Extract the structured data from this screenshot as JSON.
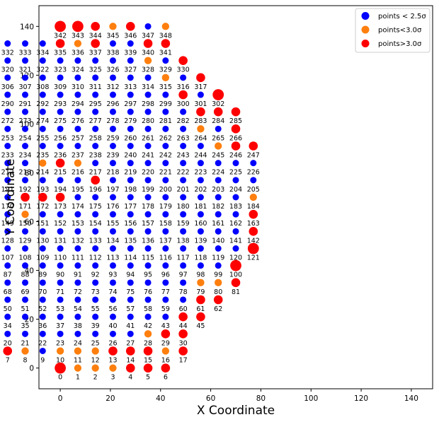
{
  "chart_data": {
    "type": "scatter",
    "xlabel": "X Coordinate",
    "ylabel": "Y Coordinate",
    "xlim": [
      -8.5,
      148.5
    ],
    "ylim": [
      -8.5,
      148.5
    ],
    "xticks": [
      0,
      20,
      40,
      60,
      80,
      100,
      120,
      140
    ],
    "yticks": [
      0,
      20,
      40,
      60,
      80,
      100,
      120,
      140
    ],
    "grid": false,
    "legend_position": "top-right",
    "legend": [
      {
        "key": "low",
        "label": "points < 2.5σ",
        "color": "#0000ff"
      },
      {
        "key": "mid",
        "label": "points<3.0σ",
        "color": "#ff7f0e"
      },
      {
        "key": "high",
        "label": "points>3.0σ",
        "color": "#ff0000"
      }
    ],
    "colors": {
      "low": "#0000ff",
      "mid": "#ff7f0e",
      "high": "#ff0000"
    },
    "sizes": {
      "low": 1,
      "mid": 1.15,
      "high": 1.4,
      "highBig": 1.75
    },
    "grid_spacing": 7,
    "rows": [
      {
        "y": 0,
        "x0": 0,
        "n": 7,
        "start": 0
      },
      {
        "y": 7,
        "x0": -3,
        "n": 11,
        "start": 7
      },
      {
        "y": 14,
        "x0": -5,
        "n": 13,
        "start": 18
      },
      {
        "y": 21,
        "x0": -6,
        "n": 15,
        "start": 31
      },
      {
        "y": 28,
        "x0": -7,
        "n": 17,
        "start": 46
      },
      {
        "y": 35,
        "x0": -8,
        "n": 19,
        "start": 63
      },
      {
        "y": 42,
        "x0": -8,
        "n": 19,
        "start": 82
      },
      {
        "y": 49,
        "x0": -9,
        "n": 21,
        "start": 101
      },
      {
        "y": 56,
        "x0": -9,
        "n": 21,
        "start": 122
      },
      {
        "y": 63,
        "x0": -9,
        "n": 21,
        "start": 143
      },
      {
        "y": 70,
        "x0": -9,
        "n": 21,
        "start": 164
      },
      {
        "y": 77,
        "x0": -9,
        "n": 21,
        "start": 185
      },
      {
        "y": 84,
        "x0": -9,
        "n": 21,
        "start": 206
      },
      {
        "y": 91,
        "x0": -9,
        "n": 21,
        "start": 227
      },
      {
        "y": 98,
        "x0": -8,
        "n": 19,
        "start": 248
      },
      {
        "y": 105,
        "x0": -8,
        "n": 19,
        "start": 267
      },
      {
        "y": 112,
        "x0": -7,
        "n": 17,
        "start": 286
      },
      {
        "y": 119,
        "x0": -6,
        "n": 15,
        "start": 303
      },
      {
        "y": 126,
        "x0": -5,
        "n": 13,
        "start": 318
      },
      {
        "y": 133,
        "x0": -4,
        "n": 11,
        "start": 331
      },
      {
        "y": 140,
        "x0": 0,
        "n": 7,
        "start": 342
      }
    ],
    "mid_points": [
      1,
      2,
      3,
      8,
      10,
      11,
      12,
      16,
      19,
      28,
      32,
      63,
      64,
      79,
      80,
      102,
      150,
      184,
      206,
      207,
      214,
      216,
      245,
      264,
      315,
      328,
      336,
      345,
      348
    ],
    "high_points": [
      4,
      5,
      6,
      7,
      13,
      14,
      15,
      17,
      29,
      30,
      44,
      45,
      47,
      61,
      62,
      81,
      100,
      101,
      121,
      122,
      142,
      143,
      163,
      164,
      171,
      172,
      173,
      196,
      215,
      227,
      246,
      247,
      266,
      268,
      283,
      284,
      285,
      300,
      302,
      303,
      317,
      318,
      319,
      330,
      331,
      335,
      337,
      340,
      341,
      342,
      343,
      344,
      346
    ],
    "big_high_points": [
      0,
      121,
      302,
      227,
      100,
      342,
      343
    ]
  }
}
